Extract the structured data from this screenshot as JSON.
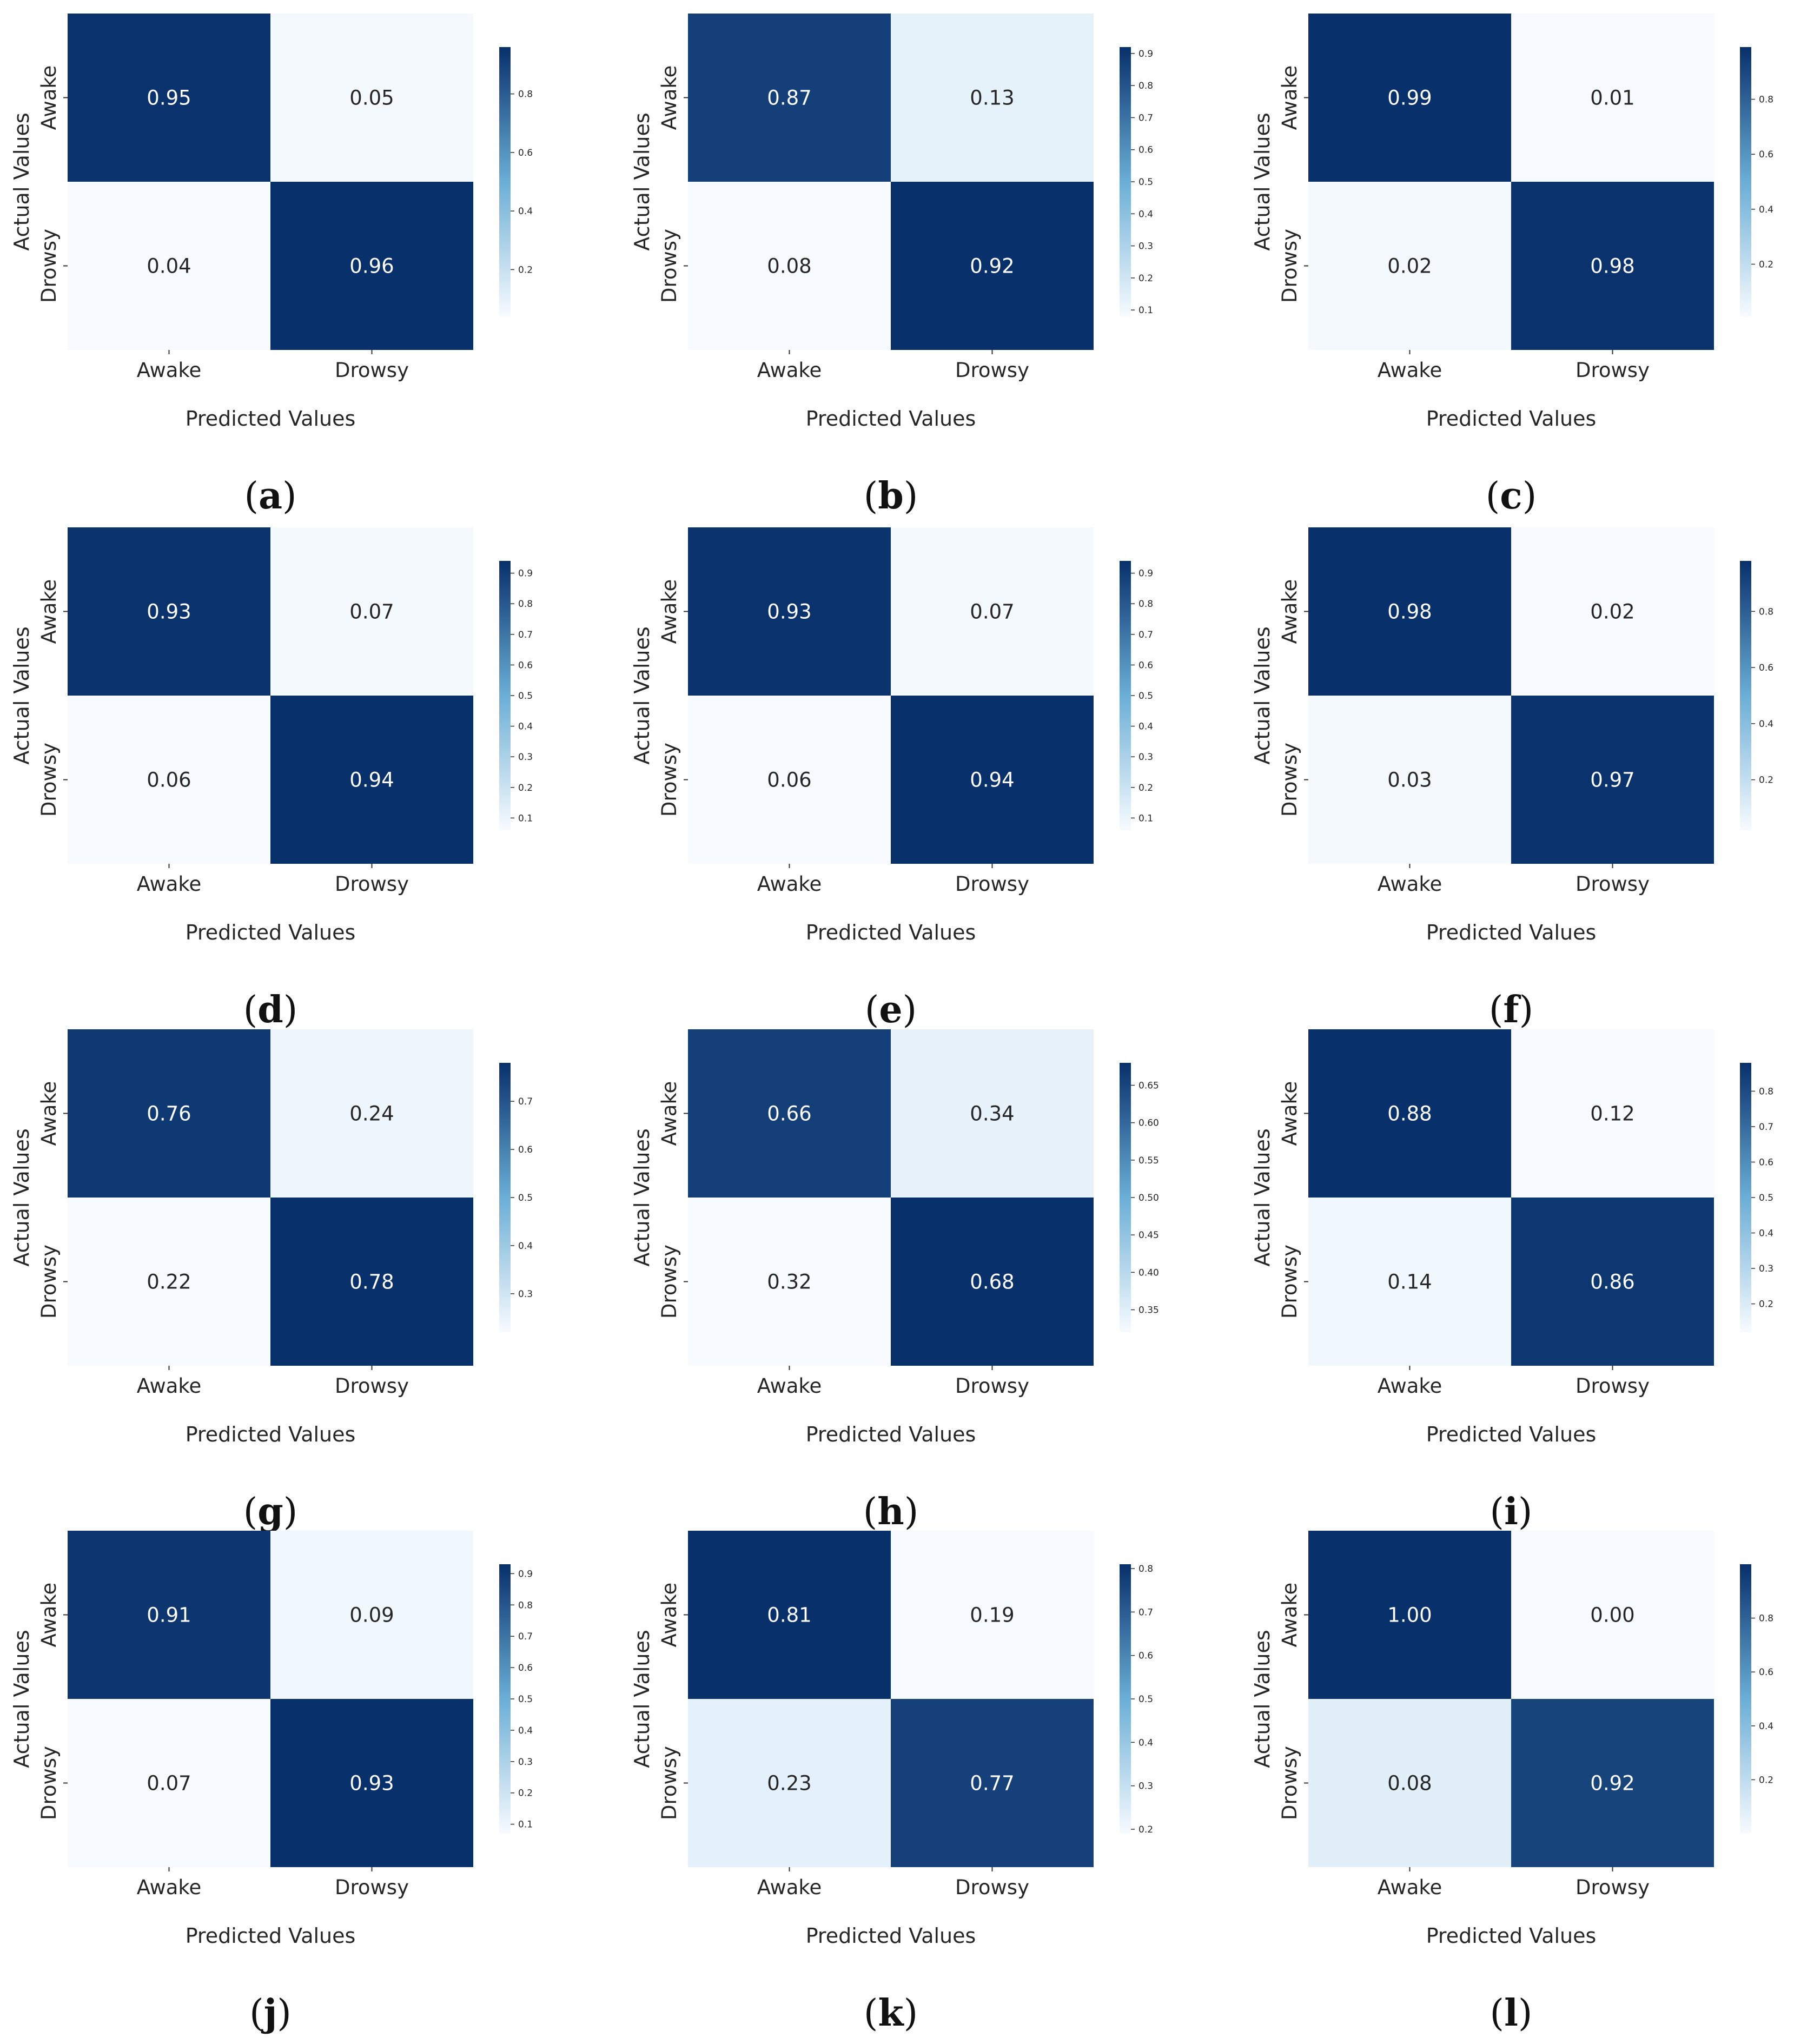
{
  "colormap": {
    "low": "#f7fbff",
    "mid": "#6baed6",
    "high": "#08306b"
  },
  "chart_data": [
    {
      "type": "heatmap",
      "panel": "(a)",
      "panel_letter": "a",
      "x_categories": [
        "Awake",
        "Drowsy"
      ],
      "y_categories": [
        "Awake",
        "Drowsy"
      ],
      "values": [
        [
          0.95,
          0.05
        ],
        [
          0.04,
          0.96
        ]
      ],
      "cell_labels": [
        [
          "0.95",
          "0.05"
        ],
        [
          "0.04",
          "0.96"
        ]
      ],
      "xlabel": "Predicted Values",
      "ylabel": "Actual Values",
      "colorbar_ticks": [
        "0.2",
        "0.4",
        "0.6",
        "0.8"
      ]
    },
    {
      "type": "heatmap",
      "panel": "(b)",
      "panel_letter": "b",
      "x_categories": [
        "Awake",
        "Drowsy"
      ],
      "y_categories": [
        "Awake",
        "Drowsy"
      ],
      "values": [
        [
          0.87,
          0.13
        ],
        [
          0.08,
          0.92
        ]
      ],
      "cell_labels": [
        [
          "0.87",
          "0.13"
        ],
        [
          "0.08",
          "0.92"
        ]
      ],
      "xlabel": "Predicted Values",
      "ylabel": "Actual Values",
      "colorbar_ticks": [
        "0.1",
        "0.2",
        "0.3",
        "0.4",
        "0.5",
        "0.6",
        "0.7",
        "0.8",
        "0.9"
      ]
    },
    {
      "type": "heatmap",
      "panel": "(c)",
      "panel_letter": "c",
      "x_categories": [
        "Awake",
        "Drowsy"
      ],
      "y_categories": [
        "Awake",
        "Drowsy"
      ],
      "values": [
        [
          0.99,
          0.01
        ],
        [
          0.02,
          0.98
        ]
      ],
      "cell_labels": [
        [
          "0.99",
          "0.01"
        ],
        [
          "0.02",
          "0.98"
        ]
      ],
      "xlabel": "Predicted Values",
      "ylabel": "Actual Values",
      "colorbar_ticks": [
        "0.2",
        "0.4",
        "0.6",
        "0.8"
      ]
    },
    {
      "type": "heatmap",
      "panel": "(d)",
      "panel_letter": "d",
      "x_categories": [
        "Awake",
        "Drowsy"
      ],
      "y_categories": [
        "Awake",
        "Drowsy"
      ],
      "values": [
        [
          0.93,
          0.07
        ],
        [
          0.06,
          0.94
        ]
      ],
      "cell_labels": [
        [
          "0.93",
          "0.07"
        ],
        [
          "0.06",
          "0.94"
        ]
      ],
      "xlabel": "Predicted Values",
      "ylabel": "Actual Values",
      "colorbar_ticks": [
        "0.1",
        "0.2",
        "0.3",
        "0.4",
        "0.5",
        "0.6",
        "0.7",
        "0.8",
        "0.9"
      ]
    },
    {
      "type": "heatmap",
      "panel": "(e)",
      "panel_letter": "e",
      "x_categories": [
        "Awake",
        "Drowsy"
      ],
      "y_categories": [
        "Awake",
        "Drowsy"
      ],
      "values": [
        [
          0.93,
          0.07
        ],
        [
          0.06,
          0.94
        ]
      ],
      "cell_labels": [
        [
          "0.93",
          "0.07"
        ],
        [
          "0.06",
          "0.94"
        ]
      ],
      "xlabel": "Predicted Values",
      "ylabel": "Actual Values",
      "colorbar_ticks": [
        "0.1",
        "0.2",
        "0.3",
        "0.4",
        "0.5",
        "0.6",
        "0.7",
        "0.8",
        "0.9"
      ]
    },
    {
      "type": "heatmap",
      "panel": "(f)",
      "panel_letter": "f",
      "x_categories": [
        "Awake",
        "Drowsy"
      ],
      "y_categories": [
        "Awake",
        "Drowsy"
      ],
      "values": [
        [
          0.98,
          0.02
        ],
        [
          0.03,
          0.97
        ]
      ],
      "cell_labels": [
        [
          "0.98",
          "0.02"
        ],
        [
          "0.03",
          "0.97"
        ]
      ],
      "xlabel": "Predicted Values",
      "ylabel": "Actual Values",
      "colorbar_ticks": [
        "0.2",
        "0.4",
        "0.6",
        "0.8"
      ]
    },
    {
      "type": "heatmap",
      "panel": "(g)",
      "panel_letter": "g",
      "x_categories": [
        "Awake",
        "Drowsy"
      ],
      "y_categories": [
        "Awake",
        "Drowsy"
      ],
      "values": [
        [
          0.76,
          0.24
        ],
        [
          0.22,
          0.78
        ]
      ],
      "cell_labels": [
        [
          "0.76",
          "0.24"
        ],
        [
          "0.22",
          "0.78"
        ]
      ],
      "xlabel": "Predicted Values",
      "ylabel": "Actual Values",
      "colorbar_ticks": [
        "0.3",
        "0.4",
        "0.5",
        "0.6",
        "0.7"
      ]
    },
    {
      "type": "heatmap",
      "panel": "(h)",
      "panel_letter": "h",
      "x_categories": [
        "Awake",
        "Drowsy"
      ],
      "y_categories": [
        "Awake",
        "Drowsy"
      ],
      "values": [
        [
          0.66,
          0.34
        ],
        [
          0.32,
          0.68
        ]
      ],
      "cell_labels": [
        [
          "0.66",
          "0.34"
        ],
        [
          "0.32",
          "0.68"
        ]
      ],
      "xlabel": "Predicted Values",
      "ylabel": "Actual Values",
      "colorbar_ticks": [
        "0.35",
        "0.40",
        "0.45",
        "0.50",
        "0.55",
        "0.60",
        "0.65"
      ]
    },
    {
      "type": "heatmap",
      "panel": "(i)",
      "panel_letter": "i",
      "x_categories": [
        "Awake",
        "Drowsy"
      ],
      "y_categories": [
        "Awake",
        "Drowsy"
      ],
      "values": [
        [
          0.88,
          0.12
        ],
        [
          0.14,
          0.86
        ]
      ],
      "cell_labels": [
        [
          "0.88",
          "0.12"
        ],
        [
          "0.14",
          "0.86"
        ]
      ],
      "xlabel": "Predicted Values",
      "ylabel": "Actual Values",
      "colorbar_ticks": [
        "0.2",
        "0.3",
        "0.4",
        "0.5",
        "0.6",
        "0.7",
        "0.8"
      ]
    },
    {
      "type": "heatmap",
      "panel": "(j)",
      "panel_letter": "j",
      "x_categories": [
        "Awake",
        "Drowsy"
      ],
      "y_categories": [
        "Awake",
        "Drowsy"
      ],
      "values": [
        [
          0.91,
          0.09
        ],
        [
          0.07,
          0.93
        ]
      ],
      "cell_labels": [
        [
          "0.91",
          "0.09"
        ],
        [
          "0.07",
          "0.93"
        ]
      ],
      "xlabel": "Predicted Values",
      "ylabel": "Actual Values",
      "colorbar_ticks": [
        "0.1",
        "0.2",
        "0.3",
        "0.4",
        "0.5",
        "0.6",
        "0.7",
        "0.8",
        "0.9"
      ]
    },
    {
      "type": "heatmap",
      "panel": "(k)",
      "panel_letter": "k",
      "x_categories": [
        "Awake",
        "Drowsy"
      ],
      "y_categories": [
        "Awake",
        "Drowsy"
      ],
      "values": [
        [
          0.81,
          0.19
        ],
        [
          0.23,
          0.77
        ]
      ],
      "cell_labels": [
        [
          "0.81",
          "0.19"
        ],
        [
          "0.23",
          "0.77"
        ]
      ],
      "xlabel": "Predicted Values",
      "ylabel": "Actual Values",
      "colorbar_ticks": [
        "0.2",
        "0.3",
        "0.4",
        "0.5",
        "0.6",
        "0.7",
        "0.8"
      ]
    },
    {
      "type": "heatmap",
      "panel": "(l)",
      "panel_letter": "l",
      "x_categories": [
        "Awake",
        "Drowsy"
      ],
      "y_categories": [
        "Awake",
        "Drowsy"
      ],
      "values": [
        [
          1.0,
          0.0
        ],
        [
          0.08,
          0.92
        ]
      ],
      "cell_labels": [
        [
          "1.00",
          "0.00"
        ],
        [
          "0.08",
          "0.92"
        ]
      ],
      "xlabel": "Predicted Values",
      "ylabel": "Actual Values",
      "colorbar_ticks": [
        "0.2",
        "0.4",
        "0.6",
        "0.8"
      ]
    }
  ]
}
